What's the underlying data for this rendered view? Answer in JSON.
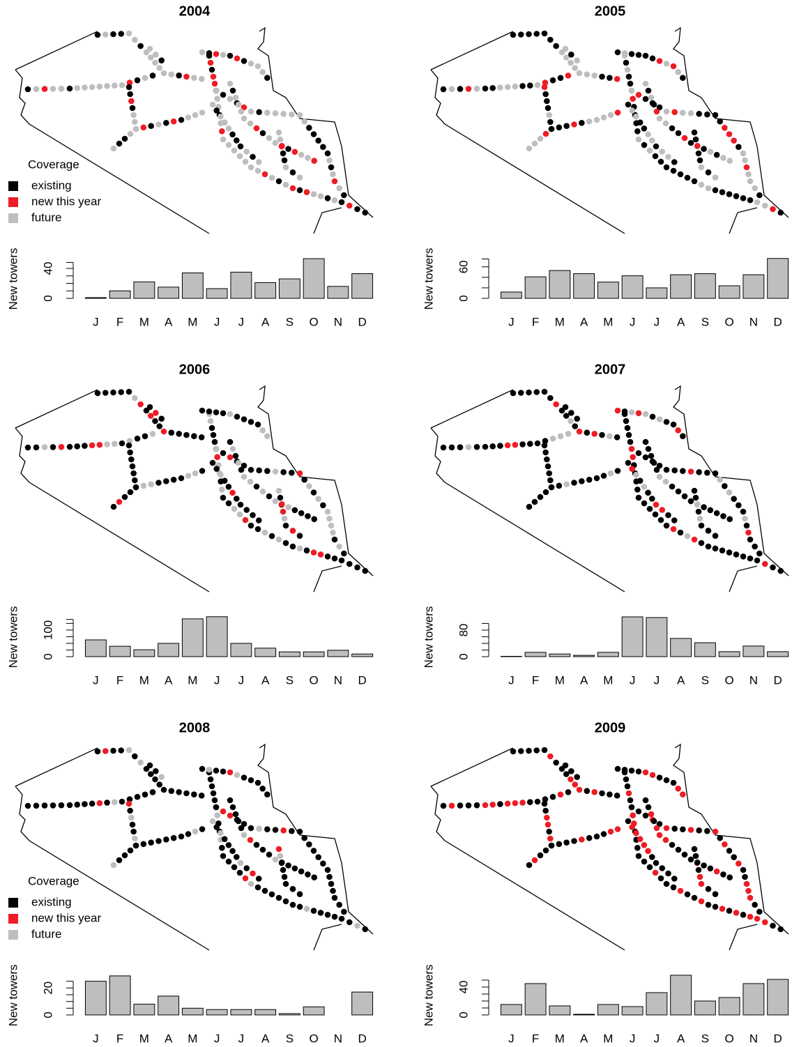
{
  "chart_data": [
    {
      "type": "bar",
      "title": "2004",
      "ylabel": "New towers",
      "categories": [
        "J",
        "F",
        "M",
        "A",
        "M",
        "J",
        "J",
        "A",
        "S",
        "O",
        "N",
        "D"
      ],
      "values": [
        1,
        10,
        22,
        15,
        34,
        13,
        35,
        21,
        26,
        53,
        16,
        33
      ],
      "color": "#bebebe",
      "ylim": [
        0,
        54
      ],
      "yticks": [
        0,
        40
      ],
      "minor_yticks": [
        10,
        20,
        30,
        48
      ],
      "legend": {
        "title": "Coverage",
        "items": [
          {
            "label": "existing",
            "color": "#000000"
          },
          {
            "label": "new this year",
            "color": "#ee1c25"
          },
          {
            "label": "future",
            "color": "#bebebe"
          }
        ]
      }
    },
    {
      "type": "bar",
      "title": "2005",
      "ylabel": "New towers",
      "categories": [
        "J",
        "F",
        "M",
        "A",
        "M",
        "J",
        "J",
        "A",
        "S",
        "O",
        "N",
        "D"
      ],
      "values": [
        12,
        41,
        53,
        47,
        31,
        43,
        20,
        45,
        47,
        24,
        45,
        76
      ],
      "color": "#bebebe",
      "ylim": [
        0,
        77
      ],
      "yticks": [
        0,
        60
      ],
      "minor_yticks": [
        20,
        40,
        75
      ]
    },
    {
      "type": "bar",
      "title": "2006",
      "ylabel": "New towers",
      "categories": [
        "J",
        "F",
        "M",
        "A",
        "M",
        "J",
        "J",
        "A",
        "S",
        "O",
        "N",
        "D"
      ],
      "values": [
        63,
        39,
        26,
        50,
        142,
        150,
        50,
        32,
        18,
        18,
        24,
        10
      ],
      "color": "#bebebe",
      "ylim": [
        0,
        152
      ],
      "yticks": [
        0,
        100
      ],
      "minor_yticks": [
        25,
        50,
        75,
        125,
        140
      ]
    },
    {
      "type": "bar",
      "title": "2007",
      "ylabel": "New towers",
      "categories": [
        "J",
        "F",
        "M",
        "A",
        "M",
        "J",
        "J",
        "A",
        "S",
        "O",
        "N",
        "D"
      ],
      "values": [
        1,
        13,
        8,
        4,
        13,
        120,
        118,
        55,
        42,
        15,
        32,
        15
      ],
      "color": "#bebebe",
      "ylim": [
        0,
        122
      ],
      "yticks": [
        0,
        80
      ],
      "minor_yticks": [
        20,
        40,
        60,
        100
      ]
    },
    {
      "type": "bar",
      "title": "2008",
      "ylabel": "New towers",
      "categories": [
        "J",
        "F",
        "M",
        "A",
        "M",
        "J",
        "J",
        "A",
        "S",
        "O",
        "N",
        "D"
      ],
      "values": [
        25,
        29,
        8,
        14,
        5,
        4,
        4,
        4,
        1,
        6,
        0,
        17
      ],
      "color": "#bebebe",
      "ylim": [
        0,
        30
      ],
      "yticks": [
        0,
        20
      ],
      "minor_yticks": [
        5,
        10,
        15,
        25
      ],
      "legend": {
        "title": "Coverage",
        "items": [
          {
            "label": "existing",
            "color": "#000000"
          },
          {
            "label": "new this year",
            "color": "#ee1c25"
          },
          {
            "label": "future",
            "color": "#bebebe"
          }
        ]
      }
    },
    {
      "type": "bar",
      "title": "2009",
      "ylabel": "New towers",
      "categories": [
        "J",
        "F",
        "M",
        "A",
        "M",
        "J",
        "J",
        "A",
        "S",
        "O",
        "N",
        "D"
      ],
      "values": [
        15,
        45,
        13,
        1,
        15,
        12,
        32,
        57,
        20,
        25,
        45,
        51
      ],
      "color": "#bebebe",
      "ylim": [
        0,
        58
      ],
      "yticks": [
        0,
        40
      ],
      "minor_yticks": [
        10,
        20,
        30,
        50
      ]
    }
  ]
}
